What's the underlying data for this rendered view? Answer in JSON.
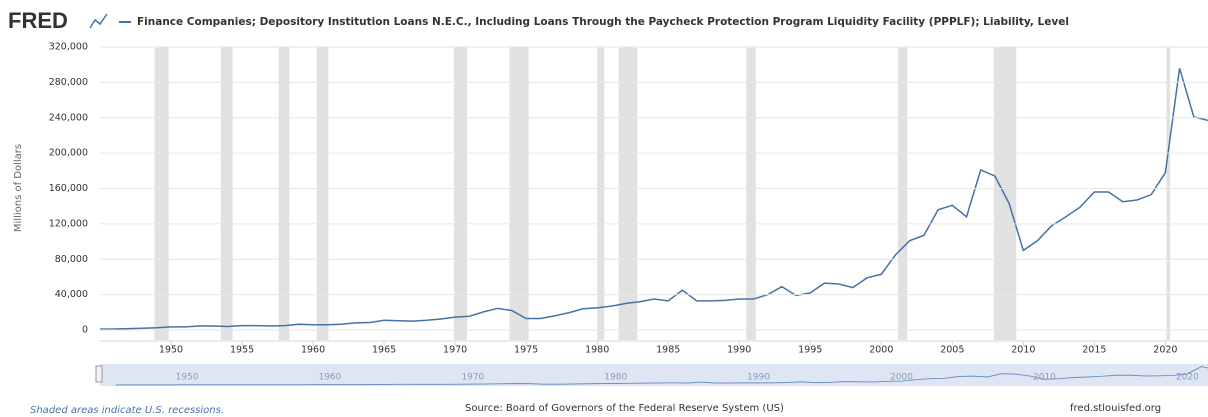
{
  "logo": "FRED",
  "footer": {
    "recession_note": "Shaded areas indicate U.S. recessions.",
    "source": "Source: Board of Governors of the Federal Reserve System (US)",
    "site": "fred.stlouisfed.org"
  },
  "chart_data": {
    "type": "line",
    "title": "Finance Companies; Depository Institution Loans N.E.C., Including Loans Through the Paycheck Protection Program Liquidity Facility (PPPLF); Liability, Level",
    "ylabel": "Millions of Dollars",
    "x": [
      1945,
      1946,
      1947,
      1948,
      1949,
      1950,
      1951,
      1952,
      1953,
      1954,
      1955,
      1956,
      1957,
      1958,
      1959,
      1960,
      1961,
      1962,
      1963,
      1964,
      1965,
      1966,
      1967,
      1968,
      1969,
      1970,
      1971,
      1972,
      1973,
      1974,
      1975,
      1976,
      1977,
      1978,
      1979,
      1980,
      1981,
      1982,
      1983,
      1984,
      1985,
      1986,
      1987,
      1988,
      1989,
      1990,
      1991,
      1992,
      1993,
      1994,
      1995,
      1996,
      1997,
      1998,
      1999,
      2000,
      2001,
      2002,
      2003,
      2004,
      2005,
      2006,
      2007,
      2008,
      2009,
      2010,
      2011,
      2012,
      2013,
      2014,
      2015,
      2016,
      2017,
      2018,
      2019,
      2020,
      2021,
      2022,
      2023
    ],
    "series": [
      {
        "name": "Finance Companies; Depository Institution Loans N.E.C., Including Loans Through the Paycheck Protection Program Liquidity Facility (PPPLF); Liability, Level",
        "color": "#4572a7",
        "values": [
          1000,
          1200,
          1500,
          2000,
          2500,
          3500,
          3500,
          4500,
          4500,
          4000,
          5000,
          5000,
          4500,
          5000,
          6500,
          6000,
          6000,
          6500,
          8000,
          8500,
          11000,
          10500,
          10000,
          11000,
          12500,
          14500,
          15500,
          20500,
          24500,
          22000,
          13000,
          13000,
          16000,
          19500,
          24000,
          25000,
          27000,
          30000,
          32000,
          35000,
          33000,
          45000,
          33000,
          33000,
          33500,
          35000,
          35000,
          40000,
          49000,
          39000,
          42000,
          53000,
          52000,
          48000,
          59000,
          63000,
          85000,
          101000,
          107000,
          136000,
          141000,
          128000,
          181000,
          174000,
          143000,
          90000,
          101000,
          118000,
          128000,
          139000,
          156000,
          156000,
          145000,
          147000,
          153000,
          178000,
          296000,
          241000,
          237000
        ]
      }
    ],
    "recessions": [
      [
        1948.83,
        1949.83
      ],
      [
        1953.5,
        1954.33
      ],
      [
        1957.58,
        1958.33
      ],
      [
        1960.25,
        1961.08
      ],
      [
        1969.92,
        1970.83
      ],
      [
        1973.83,
        1975.17
      ],
      [
        1980,
        1980.5
      ],
      [
        1981.5,
        1982.83
      ],
      [
        1990.5,
        1991.17
      ],
      [
        2001.17,
        2001.83
      ],
      [
        2007.92,
        2009.5
      ],
      [
        2020.08,
        2020.33
      ]
    ],
    "recession_color": "#e1e1e1",
    "xlim": [
      1945,
      2023
    ],
    "xticks": [
      1950,
      1955,
      1960,
      1965,
      1970,
      1975,
      1980,
      1985,
      1990,
      1995,
      2000,
      2005,
      2010,
      2015,
      2020
    ],
    "navigator_ticks": [
      1950,
      1960,
      1970,
      1980,
      1990,
      2000,
      2010,
      2020
    ],
    "ylim": [
      0,
      320000
    ],
    "yticks": [
      0,
      {
        "value": 40000,
        "label": "40,000"
      },
      {
        "value": 80000,
        "label": "80,000"
      },
      {
        "value": 120000,
        "label": "120,000"
      },
      {
        "value": 160000,
        "label": "160,000"
      },
      {
        "value": 200000,
        "label": "200,000"
      },
      {
        "value": 240000,
        "label": "240,000"
      },
      {
        "value": 280000,
        "label": "280,000"
      },
      {
        "value": 320000,
        "label": "320,000"
      }
    ],
    "grid": true
  }
}
